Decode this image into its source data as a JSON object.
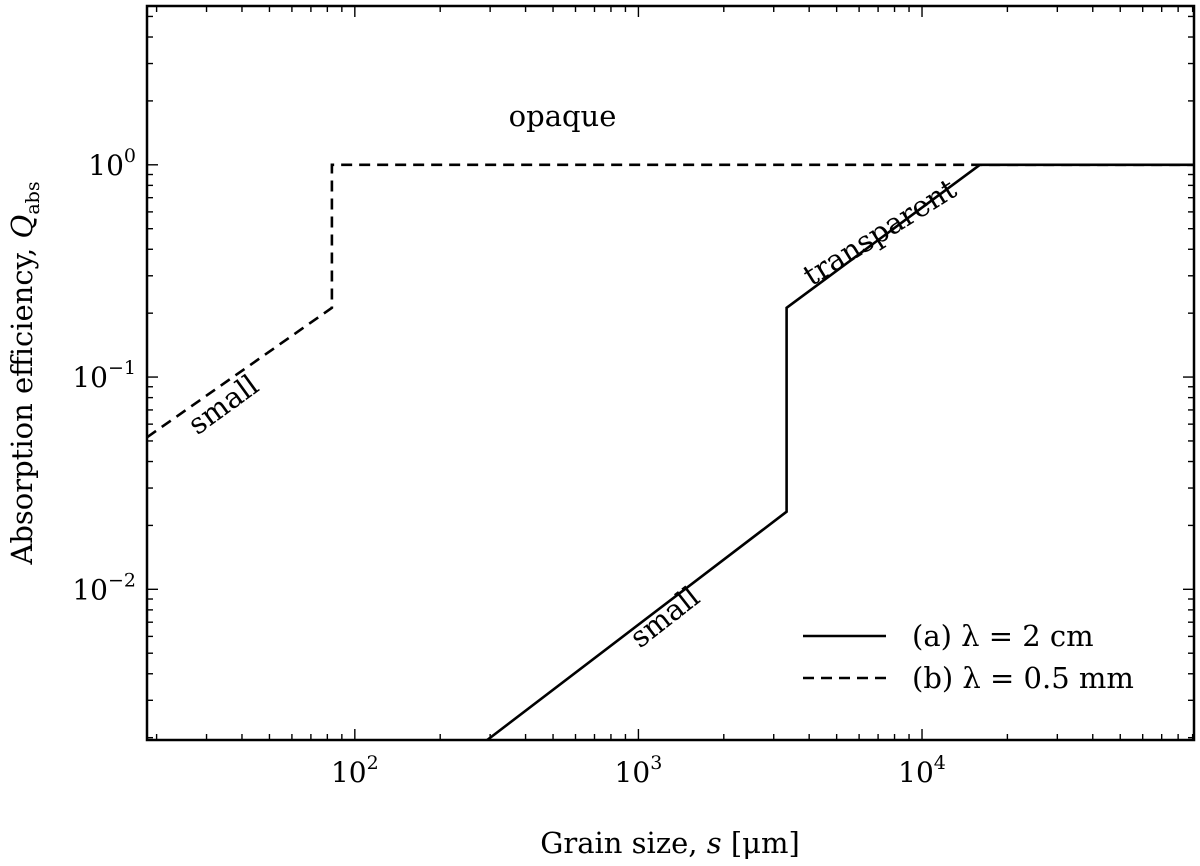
{
  "chart_data": {
    "type": "line",
    "xlabel_main": "Grain size,",
    "xlabel_var": "s",
    "xlabel_unit": "[μm]",
    "ylabel_main": "Absorption efficiency,",
    "ylabel_var": "Q",
    "ylabel_sub": "abs",
    "xscale": "log",
    "yscale": "log",
    "xlim": [
      18.5,
      91000
    ],
    "ylim": [
      0.00195,
      5.6
    ],
    "x_ticks": [
      {
        "value": 100,
        "label_base": "10",
        "label_exp": "2"
      },
      {
        "value": 1000,
        "label_base": "10",
        "label_exp": "3"
      },
      {
        "value": 10000,
        "label_base": "10",
        "label_exp": "4"
      }
    ],
    "y_ticks": [
      {
        "value": 1,
        "label_base": "10",
        "label_exp": "0"
      },
      {
        "value": 0.1,
        "label_base": "10",
        "label_exp": "−1"
      },
      {
        "value": 0.01,
        "label_base": "10",
        "label_exp": "−2"
      }
    ],
    "grid": false,
    "legend_position": "bottom-right",
    "series": [
      {
        "name": "(a) λ = 2 cm",
        "style": "solid",
        "x": [
          293,
          3330,
          3330,
          16000,
          91000
        ],
        "y": [
          0.00195,
          0.0232,
          0.212,
          1.0,
          1.0
        ]
      },
      {
        "name": "(b) λ = 0.5 mm",
        "style": "dashed",
        "x": [
          18.5,
          83,
          83,
          91000
        ],
        "y": [
          0.052,
          0.212,
          1.0,
          1.0
        ]
      }
    ],
    "annotations": [
      {
        "text": "opaque",
        "x": 540,
        "y": 1.52,
        "angle": 0
      },
      {
        "text": "transparent",
        "x": 7400,
        "y": 0.44,
        "angle": -32
      },
      {
        "text": "small",
        "x": 1300,
        "y": 0.0068,
        "angle": -38
      },
      {
        "text": "small",
        "x": 36,
        "y": 0.068,
        "angle": -36
      }
    ],
    "colors": {
      "line": "#000000",
      "background": "#ffffff"
    }
  }
}
